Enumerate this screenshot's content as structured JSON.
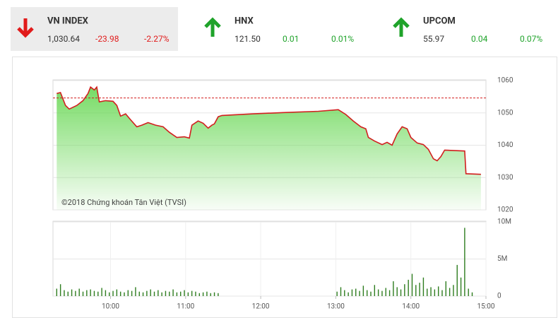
{
  "tickers": [
    {
      "name": "VN INDEX",
      "value": "1,030.64",
      "change": "-23.98",
      "change_pct": "-2.27%",
      "direction": "down"
    },
    {
      "name": "HNX",
      "value": "121.50",
      "change": "0.01",
      "change_pct": "0.01%",
      "direction": "up"
    },
    {
      "name": "UPCOM",
      "value": "55.97",
      "change": "0.04",
      "change_pct": "0.07%",
      "direction": "up"
    }
  ],
  "chart_data": [
    {
      "type": "area",
      "annotation": "©2018 Chứng khoán Tân Việt (TVSI)",
      "color": "#d21f1f",
      "fill": "#7ddc6a",
      "reference": 1054.62,
      "xlim": [
        554,
        900
      ],
      "ylim": [
        1020,
        1060
      ],
      "yticks": [
        1060,
        1050,
        1040,
        1030,
        1020
      ],
      "x": [
        557,
        560,
        564,
        567,
        573,
        578,
        582,
        584,
        587,
        589,
        591,
        596,
        602,
        605,
        608,
        612,
        616,
        621,
        625,
        630,
        636,
        642,
        647,
        653,
        659,
        663,
        665,
        670,
        674,
        678,
        681,
        683,
        686,
        689,
        714,
        738,
        766,
        782,
        788,
        794,
        800,
        804,
        806,
        811,
        817,
        821,
        825,
        829,
        833,
        837,
        840,
        845,
        850,
        854,
        858,
        861,
        864,
        867,
        883,
        884,
        896
      ],
      "values": [
        1056.0,
        1056.3,
        1052.3,
        1051.2,
        1052.3,
        1053.8,
        1056.0,
        1058.0,
        1057.1,
        1058.0,
        1053.4,
        1053.8,
        1053.6,
        1052.3,
        1049.0,
        1049.7,
        1047.9,
        1045.7,
        1046.2,
        1047.0,
        1046.2,
        1045.7,
        1044.0,
        1042.4,
        1042.6,
        1042.2,
        1046.2,
        1047.5,
        1046.8,
        1045.3,
        1046.2,
        1046.6,
        1048.8,
        1049.2,
        1049.7,
        1050.1,
        1050.5,
        1051.0,
        1049.5,
        1047.5,
        1045.7,
        1045.1,
        1042.4,
        1041.3,
        1040.2,
        1040.9,
        1040.0,
        1043.5,
        1045.7,
        1045.1,
        1042.4,
        1040.7,
        1040.2,
        1038.7,
        1035.8,
        1035.2,
        1036.5,
        1038.5,
        1038.2,
        1031.2,
        1031.0
      ]
    },
    {
      "type": "bar",
      "color": "#2e7d1f",
      "xlim": [
        554,
        900
      ],
      "xticks": [
        {
          "value": 600,
          "label": "10:00"
        },
        {
          "value": 660,
          "label": "11:00"
        },
        {
          "value": 720,
          "label": "12:00"
        },
        {
          "value": 780,
          "label": "13:00"
        },
        {
          "value": 840,
          "label": "14:00"
        },
        {
          "value": 900,
          "label": "15:00"
        }
      ],
      "ylim": [
        0,
        10
      ],
      "yticks": [
        {
          "value": 10,
          "label": "10M"
        },
        {
          "value": 5,
          "label": "5M"
        },
        0
      ],
      "x": [
        557,
        560,
        563,
        566,
        569,
        572,
        575,
        578,
        581,
        584,
        587,
        590,
        593,
        596,
        599,
        602,
        605,
        608,
        611,
        614,
        617,
        620,
        623,
        626,
        629,
        632,
        635,
        638,
        641,
        644,
        647,
        650,
        653,
        656,
        659,
        662,
        665,
        668,
        671,
        674,
        677,
        680,
        683,
        686,
        781,
        784,
        787,
        790,
        793,
        796,
        799,
        802,
        805,
        808,
        811,
        814,
        817,
        820,
        823,
        826,
        829,
        832,
        835,
        838,
        841,
        844,
        847,
        850,
        853,
        856,
        859,
        862,
        865,
        868,
        871,
        874,
        877,
        880,
        883,
        886,
        889
      ],
      "values": [
        1.0,
        1.6,
        0.8,
        0.6,
        0.9,
        0.7,
        1.0,
        0.6,
        0.8,
        0.9,
        0.7,
        0.6,
        1.1,
        0.8,
        0.5,
        0.7,
        0.9,
        0.6,
        0.5,
        0.8,
        0.7,
        1.2,
        0.6,
        0.5,
        0.7,
        0.9,
        0.6,
        0.8,
        0.5,
        0.7,
        0.6,
        0.9,
        0.5,
        0.6,
        0.8,
        0.5,
        0.7,
        0.6,
        0.4,
        0.5,
        0.6,
        0.4,
        0.5,
        0.4,
        0.6,
        1.2,
        0.8,
        0.5,
        0.9,
        1.0,
        0.7,
        1.4,
        0.8,
        0.6,
        1.5,
        0.9,
        0.7,
        1.1,
        0.8,
        2.0,
        1.2,
        0.9,
        1.6,
        2.2,
        3.0,
        1.5,
        1.8,
        2.5,
        1.0,
        1.2,
        0.9,
        1.3,
        0.8,
        2.0,
        1.1,
        1.5,
        4.2,
        2.5,
        9.2,
        1.0,
        0.5
      ]
    }
  ]
}
